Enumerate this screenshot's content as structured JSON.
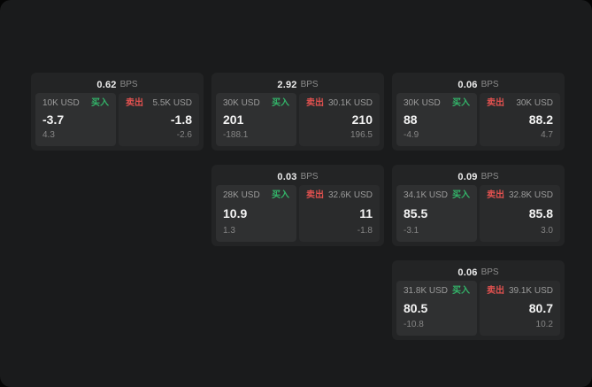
{
  "colors": {
    "buy": "#33b469",
    "sell": "#e0514f"
  },
  "cards": [
    {
      "bps": "0.62",
      "bps_unit": "BPS",
      "buy_size": "10K USD",
      "buy_label": "买入",
      "buy_price": "-3.7",
      "buy_delta": "4.3",
      "sell_label": "卖出",
      "sell_size": "5.5K USD",
      "sell_price": "-1.8",
      "sell_delta": "-2.6"
    },
    {
      "bps": "2.92",
      "bps_unit": "BPS",
      "buy_size": "30K USD",
      "buy_label": "买入",
      "buy_price": "201",
      "buy_delta": "-188.1",
      "sell_label": "卖出",
      "sell_size": "30.1K USD",
      "sell_price": "210",
      "sell_delta": "196.5"
    },
    {
      "bps": "0.06",
      "bps_unit": "BPS",
      "buy_size": "30K USD",
      "buy_label": "买入",
      "buy_price": "88",
      "buy_delta": "-4.9",
      "sell_label": "卖出",
      "sell_size": "30K USD",
      "sell_price": "88.2",
      "sell_delta": "4.7"
    },
    {
      "bps": "0.03",
      "bps_unit": "BPS",
      "buy_size": "28K USD",
      "buy_label": "买入",
      "buy_price": "10.9",
      "buy_delta": "1.3",
      "sell_label": "卖出",
      "sell_size": "32.6K USD",
      "sell_price": "11",
      "sell_delta": "-1.8"
    },
    {
      "bps": "0.09",
      "bps_unit": "BPS",
      "buy_size": "34.1K USD",
      "buy_label": "买入",
      "buy_price": "85.5",
      "buy_delta": "-3.1",
      "sell_label": "卖出",
      "sell_size": "32.8K USD",
      "sell_price": "85.8",
      "sell_delta": "3.0"
    },
    {
      "bps": "0.06",
      "bps_unit": "BPS",
      "buy_size": "31.8K USD",
      "buy_label": "买入",
      "buy_price": "80.5",
      "buy_delta": "-10.8",
      "sell_label": "卖出",
      "sell_size": "39.1K USD",
      "sell_price": "80.7",
      "sell_delta": "10.2"
    }
  ]
}
